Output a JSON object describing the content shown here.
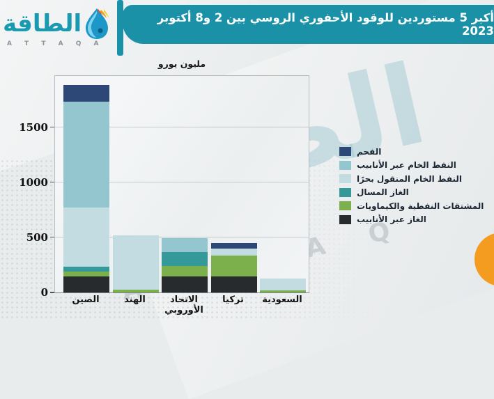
{
  "header": {
    "title": "أكبر 5 مستوردين للوقود الأحفوري الروسي بين 2 و8 أكتوبر 2023",
    "bg_color": "#1b91a8"
  },
  "logo": {
    "arabic": "الطاقة",
    "latin": "A T T A Q A",
    "brand_color": "#1a9ab1"
  },
  "watermark": {
    "arabic": "الطاقة",
    "latin": "A T T A Q"
  },
  "chart_data": {
    "type": "bar",
    "stacked": true,
    "title": "أكبر 5 مستوردين للوقود الأحفوري الروسي بين 2 و8 أكتوبر 2023",
    "unit_label": "مليون يورو",
    "ylabel": "مليون يورو",
    "xlabel": "",
    "categories": [
      "الصين",
      "الهند",
      "الاتحاد الأوروبي",
      "تركيا",
      "السعودية"
    ],
    "series": [
      {
        "name": "الفحم",
        "color": "#2d4777",
        "values": [
          150,
          0,
          0,
          52,
          0
        ]
      },
      {
        "name": "النفط الخام عبر الأنابيب",
        "color": "#93c6ce",
        "values": [
          960,
          0,
          126,
          0,
          0
        ]
      },
      {
        "name": "النفط الخام المنقول بحرًا",
        "color": "#c2dce2",
        "values": [
          540,
          495,
          0,
          63,
          105
        ]
      },
      {
        "name": "الغاز المسال",
        "color": "#35999a",
        "values": [
          40,
          0,
          126,
          0,
          0
        ]
      },
      {
        "name": "المشتقات النفطية والكيماويات",
        "color": "#7cb04c",
        "values": [
          45,
          27,
          94,
          189,
          20
        ]
      },
      {
        "name": "الغاز عبر الأنابيب",
        "color": "#282b2d",
        "values": [
          148,
          0,
          148,
          146,
          0
        ]
      }
    ],
    "totals": [
      1883,
      522,
      494,
      450,
      125
    ],
    "yticks": [
      0,
      500,
      1000,
      1500
    ],
    "ylim": [
      0,
      1970
    ],
    "grid": true,
    "legend_position": "right"
  },
  "colors": {
    "banner_teal": "#1b91a8",
    "orange_accent": "#f49c20",
    "background": "#e9eced"
  }
}
